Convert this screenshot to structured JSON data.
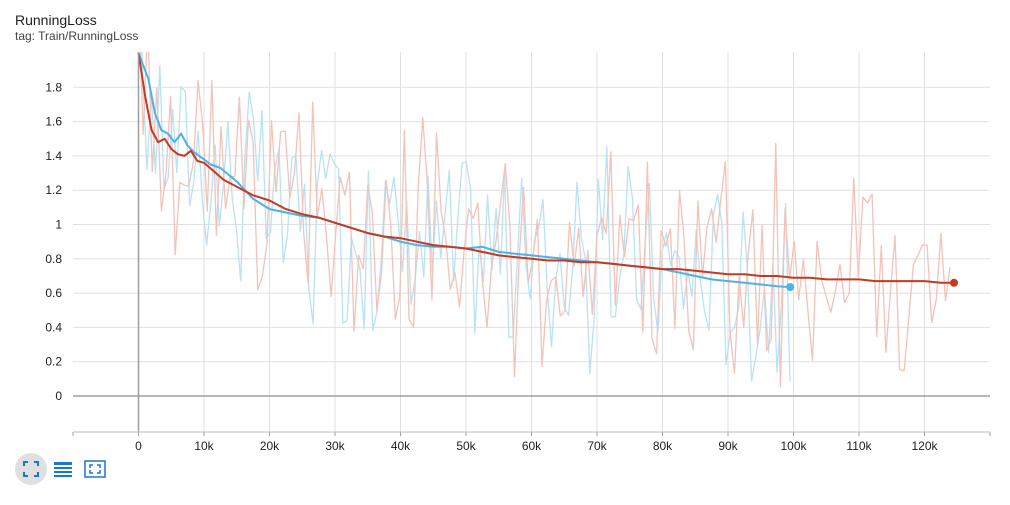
{
  "header": {
    "title": "RunningLoss",
    "subtitle": "tag: Train/RunningLoss"
  },
  "colors": {
    "series_blue": "#4fb1e6",
    "series_red": "#c23a22",
    "raw_blue": "#b8e2f5",
    "raw_red": "#f3c2b8",
    "grid": "#e0e0e0",
    "axis": "#9e9e9e",
    "toolbar_icon": "#1976d2"
  },
  "toolbar": {
    "icons": [
      "fullscreen-icon",
      "toggle-log-scale-icon",
      "fit-domain-icon"
    ]
  },
  "chart_data": {
    "type": "line",
    "title": "RunningLoss",
    "subtitle": "tag: Train/RunningLoss",
    "xlabel": "",
    "ylabel": "",
    "xlim": [
      -10000,
      130000
    ],
    "ylim": [
      -0.2,
      2.0
    ],
    "grid": true,
    "x_ticks": [
      0,
      10000,
      20000,
      30000,
      40000,
      50000,
      60000,
      70000,
      80000,
      90000,
      100000,
      110000,
      120000
    ],
    "x_tick_labels": [
      "0",
      "10k",
      "20k",
      "30k",
      "40k",
      "50k",
      "60k",
      "70k",
      "80k",
      "90k",
      "100k",
      "110k",
      "120k"
    ],
    "y_ticks": [
      0,
      0.2,
      0.4,
      0.6,
      0.8,
      1.0,
      1.2,
      1.4,
      1.6,
      1.8
    ],
    "y_tick_labels": [
      "0",
      "0.2",
      "0.4",
      "0.6",
      "0.8",
      "1",
      "1.2",
      "1.4",
      "1.6",
      "1.8"
    ],
    "series": [
      {
        "color": "#4fb1e6",
        "raw_color": "#b8e2f5",
        "x": [
          0,
          1500,
          2500,
          3500,
          4500,
          5500,
          6500,
          7500,
          8500,
          10000,
          11000,
          12500,
          15000,
          17500,
          20000,
          22500,
          25000,
          27500,
          30000,
          32500,
          35000,
          37500,
          40000,
          42500,
          45000,
          47500,
          50000,
          52500,
          55000,
          57500,
          60000,
          62500,
          65000,
          67500,
          70000,
          72500,
          75000,
          77500,
          80000,
          82500,
          85000,
          87500,
          90000,
          92500,
          95000,
          97500,
          99500
        ],
        "values": [
          2.0,
          1.85,
          1.65,
          1.55,
          1.53,
          1.48,
          1.53,
          1.46,
          1.42,
          1.38,
          1.35,
          1.33,
          1.25,
          1.15,
          1.09,
          1.07,
          1.05,
          1.04,
          1.01,
          0.98,
          0.95,
          0.93,
          0.9,
          0.88,
          0.87,
          0.87,
          0.86,
          0.87,
          0.84,
          0.83,
          0.82,
          0.81,
          0.8,
          0.79,
          0.78,
          0.77,
          0.76,
          0.75,
          0.74,
          0.72,
          0.7,
          0.68,
          0.67,
          0.66,
          0.65,
          0.64,
          0.635
        ]
      },
      {
        "color": "#c23a22",
        "raw_color": "#f3c2b8",
        "x": [
          0,
          1000,
          2000,
          3000,
          4000,
          5000,
          6000,
          7000,
          8000,
          9000,
          10000,
          11500,
          13000,
          15000,
          17500,
          20000,
          22500,
          25000,
          27500,
          30000,
          32500,
          35000,
          37500,
          40000,
          42500,
          45000,
          47500,
          50000,
          52500,
          55000,
          57500,
          60000,
          62500,
          65000,
          67500,
          70000,
          72500,
          75000,
          77500,
          80000,
          82500,
          85000,
          87500,
          90000,
          92500,
          95000,
          97500,
          100000,
          102500,
          105000,
          107500,
          110000,
          112500,
          115000,
          117500,
          120000,
          122500,
          124500
        ],
        "values": [
          2.0,
          1.75,
          1.55,
          1.48,
          1.5,
          1.44,
          1.41,
          1.4,
          1.43,
          1.37,
          1.36,
          1.31,
          1.26,
          1.22,
          1.17,
          1.14,
          1.09,
          1.06,
          1.04,
          1.01,
          0.98,
          0.95,
          0.93,
          0.92,
          0.9,
          0.88,
          0.87,
          0.86,
          0.84,
          0.82,
          0.81,
          0.8,
          0.79,
          0.79,
          0.78,
          0.78,
          0.77,
          0.76,
          0.75,
          0.74,
          0.74,
          0.73,
          0.72,
          0.71,
          0.71,
          0.7,
          0.7,
          0.69,
          0.69,
          0.68,
          0.68,
          0.68,
          0.67,
          0.67,
          0.67,
          0.67,
          0.66,
          0.66
        ]
      }
    ]
  }
}
